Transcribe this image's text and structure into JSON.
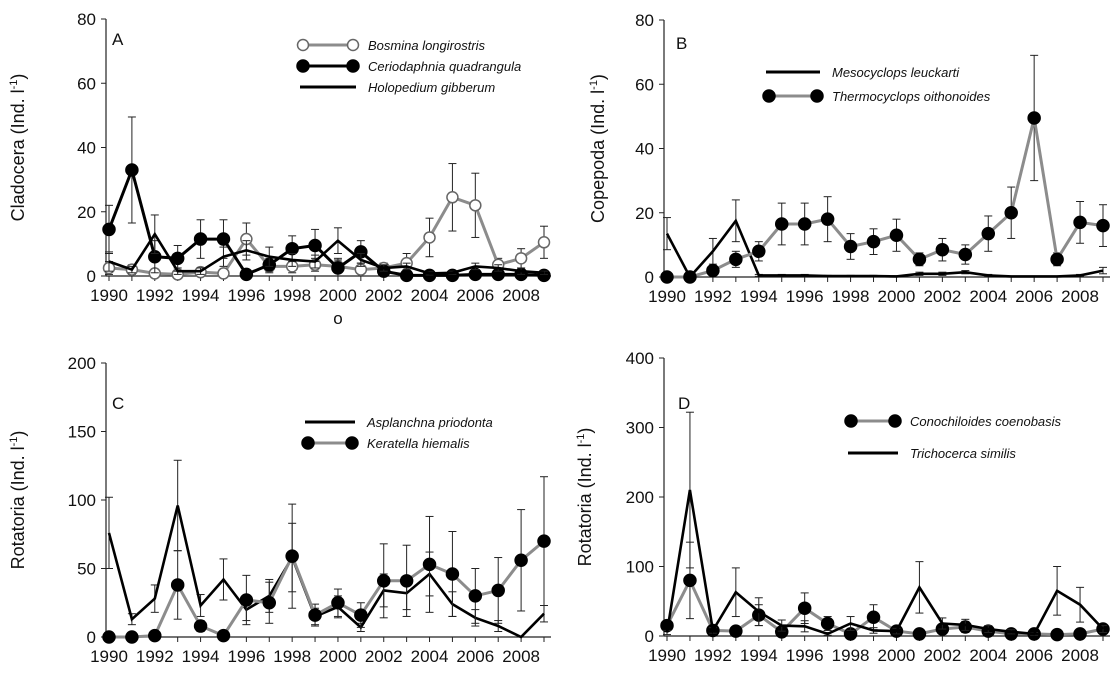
{
  "chart_data": [
    {
      "type": "line",
      "panel_label": "A",
      "ylabel": "Cladocera (Ind. l-1)",
      "ylabel_main": "Cladocera (Ind. l",
      "ylabel_sup": "-1",
      "ylabel_tail": ")",
      "ylim": [
        0,
        80
      ],
      "yticks": [
        "0",
        "20",
        "40",
        "60",
        "80"
      ],
      "x": [
        1990,
        1991,
        1992,
        1993,
        1994,
        1995,
        1996,
        1997,
        1998,
        1999,
        2000,
        2001,
        2002,
        2003,
        2004,
        2005,
        2006,
        2007,
        2008,
        2009
      ],
      "xticks": [
        "1990",
        "1992",
        "1994",
        "1996",
        "1998",
        "2000",
        "2002",
        "2004",
        "2006",
        "2008"
      ],
      "extra_mark": "o",
      "legend_position": "top-right",
      "series": [
        {
          "name": "Bosmina longirostris",
          "color": "#8c8c8c",
          "marker": "open-circle",
          "values": [
            2.5,
            2,
            0.8,
            0.5,
            1.2,
            0.8,
            11.5,
            3,
            3,
            3.5,
            3,
            2,
            2.5,
            4,
            12,
            24.5,
            22,
            3.5,
            5.5,
            10.5
          ],
          "errors": [
            2,
            1.5,
            0.5,
            0.5,
            1,
            0.8,
            5,
            2,
            2,
            2,
            2,
            2,
            1.5,
            3,
            6,
            10.5,
            10,
            2,
            3,
            5
          ]
        },
        {
          "name": "Ceriodaphnia quadrangula",
          "color": "#000000",
          "marker": "filled-circle",
          "values": [
            14.5,
            33,
            6,
            5.5,
            11.5,
            11.5,
            0.5,
            3.5,
            8.5,
            9.5,
            2.5,
            7.5,
            1.5,
            0.2,
            0.2,
            0.2,
            0.5,
            0.5,
            0.5,
            0.2
          ],
          "errors": [
            7.5,
            16.5,
            5,
            4,
            6,
            6,
            0.5,
            2,
            4,
            5,
            3,
            3.5,
            1.5,
            0.2,
            0.2,
            0.2,
            0.5,
            0.5,
            0.5,
            0.2
          ]
        },
        {
          "name": "Holopedium gibberum",
          "color": "#000000",
          "marker": "none",
          "values": [
            4.5,
            2,
            13,
            1.5,
            1.5,
            6,
            8,
            6,
            5,
            4.5,
            11,
            5,
            2.5,
            3,
            0.8,
            1,
            3,
            2.5,
            1.5,
            1
          ],
          "errors": [
            3,
            1,
            6,
            1,
            1,
            3,
            3,
            3,
            2,
            2,
            4,
            2,
            1,
            1,
            0.5,
            0.5,
            1,
            1,
            1,
            0.5
          ]
        }
      ]
    },
    {
      "type": "line",
      "panel_label": "B",
      "ylabel": "Copepoda (Ind. l-1)",
      "ylabel_main": "Copepoda  (Ind. l",
      "ylabel_sup": "-1",
      "ylabel_tail": ")",
      "ylim": [
        0,
        80
      ],
      "yticks": [
        "0",
        "20",
        "40",
        "60",
        "80"
      ],
      "x": [
        1990,
        1991,
        1992,
        1993,
        1994,
        1995,
        1996,
        1997,
        1998,
        1999,
        2000,
        2001,
        2002,
        2003,
        2004,
        2005,
        2006,
        2007,
        2008,
        2009
      ],
      "xticks": [
        "1990",
        "1992",
        "1994",
        "1996",
        "1998",
        "2000",
        "2002",
        "2004",
        "2006",
        "2008"
      ],
      "legend_position": "top-right",
      "series": [
        {
          "name": "Mesocyclops leuckarti",
          "color": "#000000",
          "marker": "none",
          "values": [
            13.5,
            0,
            8,
            17.5,
            0.5,
            0.5,
            0.5,
            0.3,
            0.3,
            0.3,
            0.2,
            1,
            1,
            1.5,
            0.5,
            0.2,
            0.2,
            0.2,
            0.5,
            2
          ],
          "errors": [
            5,
            0,
            4,
            6.5,
            0.3,
            0.3,
            0.3,
            0.2,
            0.2,
            0.2,
            0.2,
            0.5,
            0.5,
            0.5,
            0.3,
            0.1,
            0.1,
            0.1,
            0.3,
            1
          ]
        },
        {
          "name": "Thermocyclops oithonoides",
          "color": "#8c8c8c",
          "marker": "filled-circle",
          "values": [
            0,
            0,
            2,
            5.5,
            8,
            16.5,
            16.5,
            18,
            9.5,
            11,
            13,
            5.5,
            8.5,
            7,
            13.5,
            20,
            49.5,
            5.5,
            17,
            16
          ],
          "errors": [
            0,
            0,
            1.5,
            2.5,
            3,
            6.5,
            6.5,
            7,
            4,
            4,
            5,
            2,
            3.5,
            3,
            5.5,
            8,
            19.5,
            2,
            6.5,
            6.5
          ]
        }
      ]
    },
    {
      "type": "line",
      "panel_label": "C",
      "ylabel": "Rotatoria (Ind. l-1)",
      "ylabel_main": "Rotatoria (Ind. l",
      "ylabel_sup": "-1",
      "ylabel_tail": ")",
      "ylim": [
        0,
        200
      ],
      "yticks": [
        "0",
        "50",
        "100",
        "150",
        "200"
      ],
      "x": [
        1990,
        1991,
        1992,
        1993,
        1994,
        1995,
        1996,
        1997,
        1998,
        1999,
        2000,
        2001,
        2002,
        2003,
        2004,
        2005,
        2006,
        2007,
        2008,
        2009
      ],
      "xticks": [
        "1990",
        "1992",
        "1994",
        "1996",
        "1998",
        "2000",
        "2002",
        "2004",
        "2006",
        "2008"
      ],
      "legend_position": "top-right",
      "series": [
        {
          "name": "Asplanchna priodonta",
          "color": "#000000",
          "marker": "none",
          "values": [
            76,
            13,
            28,
            96,
            23,
            42,
            20,
            30,
            58,
            15,
            22,
            7,
            34,
            32,
            46,
            24,
            14,
            8,
            0,
            17
          ],
          "errors": [
            26,
            4,
            10,
            33,
            8,
            15,
            8,
            12,
            25,
            6,
            8,
            3,
            12,
            12,
            16,
            9,
            6,
            4,
            0,
            6
          ]
        },
        {
          "name": "Keratella hiemalis",
          "color": "#8c8c8c",
          "marker": "filled-circle",
          "values": [
            0,
            0,
            1,
            38,
            8,
            1,
            27,
            25,
            59,
            16,
            25,
            16,
            41,
            41,
            53,
            46,
            30,
            34,
            56,
            70
          ],
          "errors": [
            0,
            0,
            1,
            25,
            4,
            1,
            18,
            15,
            38,
            8,
            10,
            9,
            27,
            26,
            35,
            31,
            20,
            24,
            37,
            47
          ]
        }
      ]
    },
    {
      "type": "line",
      "panel_label": "D",
      "ylabel": "Rotatoria (Ind. l-1)",
      "ylabel_main": "Rotatoria (Ind. l",
      "ylabel_sup": "-1",
      "ylabel_tail": ")",
      "ylim": [
        0,
        400
      ],
      "yticks": [
        "0",
        "100",
        "200",
        "300",
        "400"
      ],
      "x": [
        1990,
        1991,
        1992,
        1993,
        1994,
        1995,
        1996,
        1997,
        1998,
        1999,
        2000,
        2001,
        2002,
        2003,
        2004,
        2005,
        2006,
        2007,
        2008,
        2009
      ],
      "xticks": [
        "1990",
        "1992",
        "1994",
        "1996",
        "1998",
        "2000",
        "2002",
        "2004",
        "2006",
        "2008"
      ],
      "legend_position": "top-right",
      "series": [
        {
          "name": "Conochiloides coenobasis",
          "color": "#8c8c8c",
          "marker": "filled-circle",
          "values": [
            15,
            80,
            8,
            7,
            30,
            6,
            40,
            18,
            3,
            27,
            7,
            3,
            10,
            13,
            7,
            3,
            3,
            2,
            3,
            10
          ],
          "errors": [
            6,
            55,
            4,
            4,
            15,
            4,
            22,
            10,
            2,
            18,
            4,
            2,
            6,
            8,
            4,
            2,
            2,
            1,
            2,
            5
          ]
        },
        {
          "name": "Trichocerca similis",
          "color": "#000000",
          "marker": "none",
          "values": [
            5,
            210,
            8,
            63,
            35,
            15,
            14,
            3,
            18,
            8,
            7,
            70,
            18,
            16,
            10,
            6,
            3,
            65,
            45,
            10
          ],
          "errors": [
            3,
            112,
            4,
            35,
            20,
            8,
            8,
            2,
            10,
            4,
            4,
            37,
            8,
            8,
            5,
            3,
            2,
            35,
            25,
            5
          ]
        }
      ]
    }
  ]
}
